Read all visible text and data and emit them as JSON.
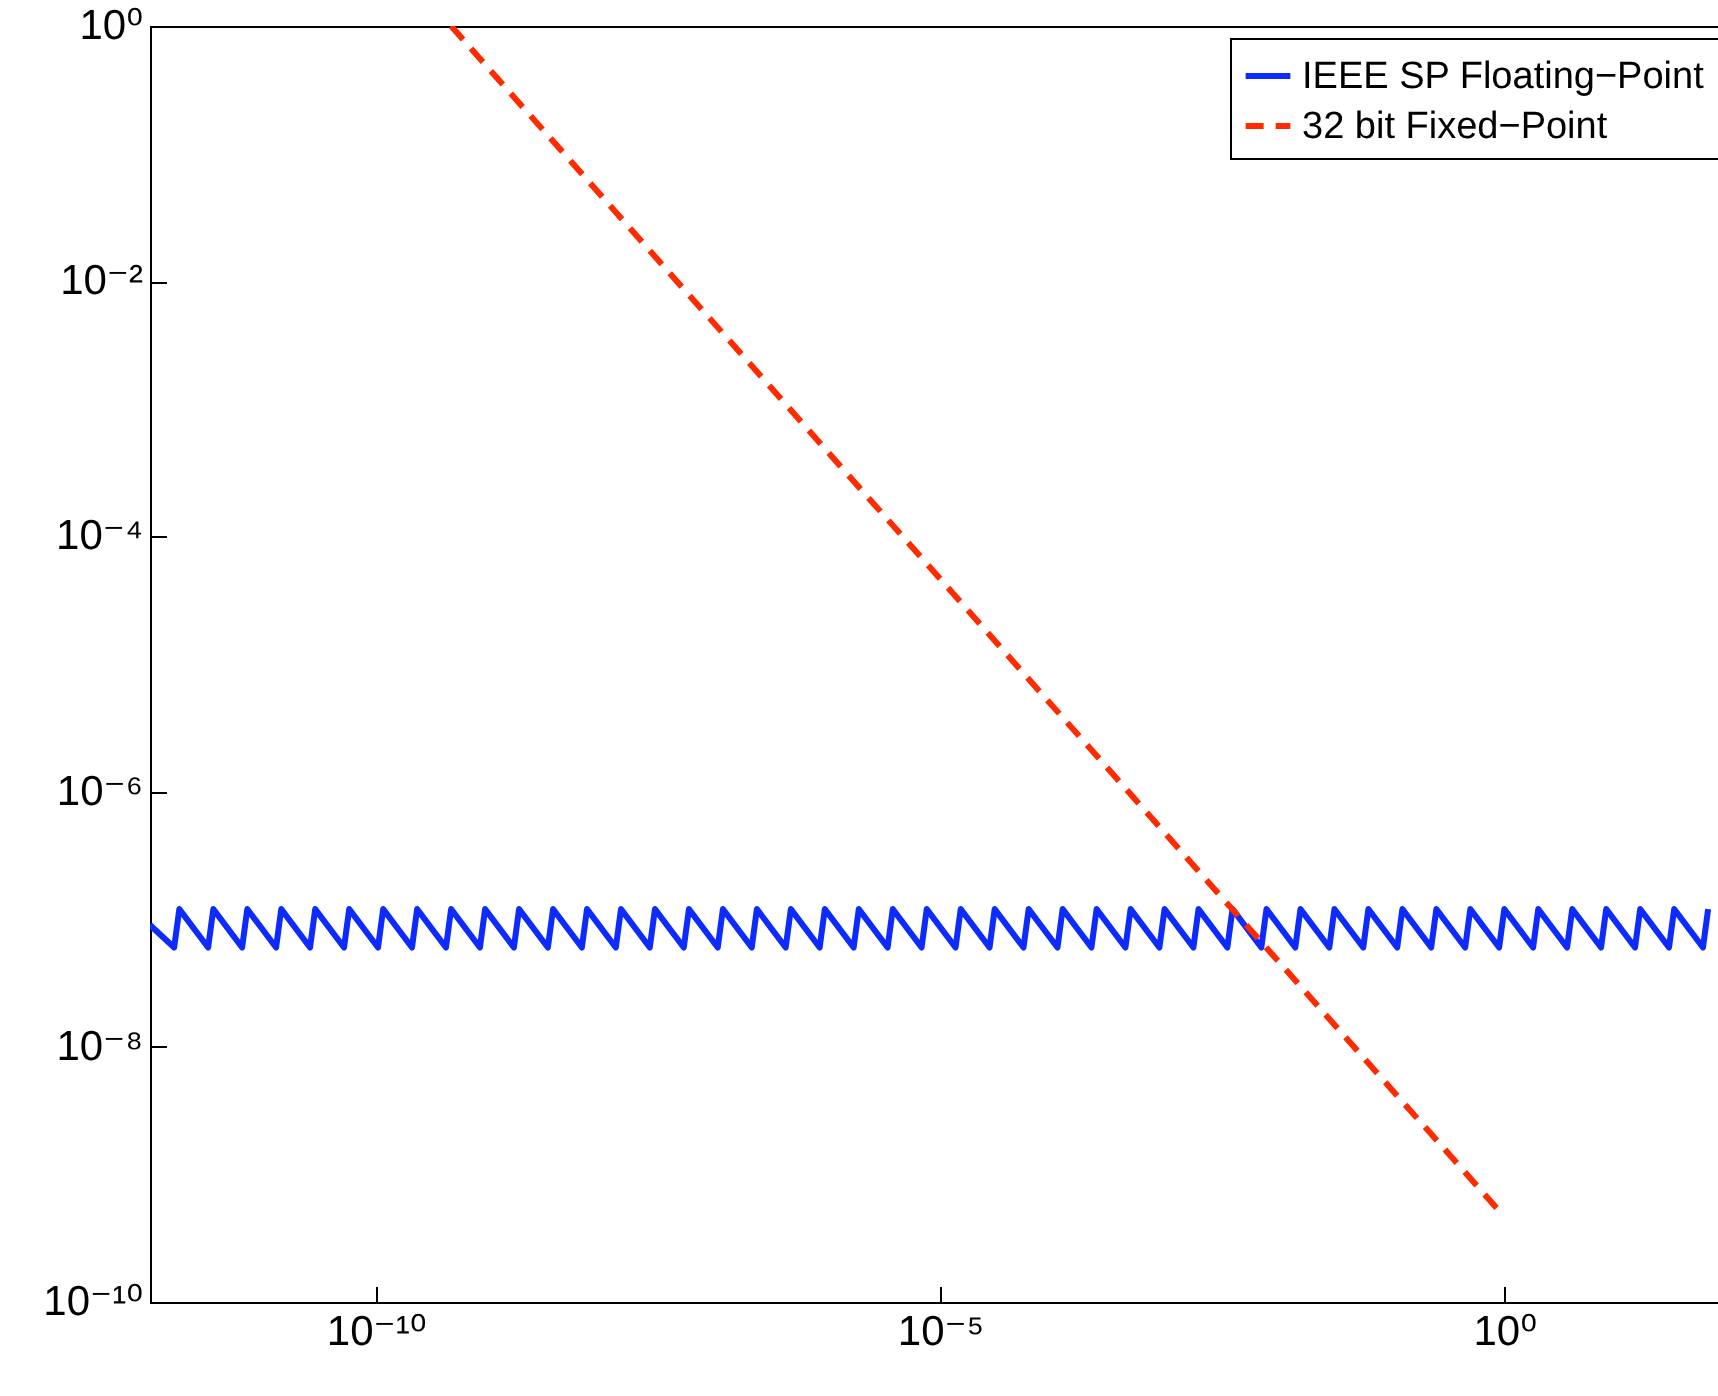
{
  "chart_data": {
    "type": "line",
    "log": "xy",
    "grid": false,
    "legend": "top right",
    "marker": "none",
    "xlim": [
      1e-12,
      100
    ],
    "ylim": [
      1e-10,
      1
    ],
    "xticks": [
      {
        "value": 1e-10,
        "label": "10⁻¹⁰"
      },
      {
        "value": 1e-05,
        "label": "10⁻⁵"
      },
      {
        "value": 1,
        "label": "10⁰"
      }
    ],
    "yticks": [
      {
        "value": 1e-10,
        "label": "10⁻¹⁰"
      },
      {
        "value": 1e-08,
        "label": "10⁻⁸"
      },
      {
        "value": 1e-06,
        "label": "10⁻⁶"
      },
      {
        "value": 0.0001,
        "label": "10⁻⁴"
      },
      {
        "value": 0.01,
        "label": "10⁻²"
      },
      {
        "value": 1,
        "label": "10⁰"
      }
    ],
    "series": [
      {
        "name": "IEEE SP Floating−Point",
        "color": "#0d2bff",
        "line_style": "solid",
        "x": [
          1e-12,
          1.637e-12,
          1.819e-12,
          3.274e-12,
          3.638e-12,
          6.548e-12,
          7.276e-12,
          1.31e-11,
          1.455e-11,
          2.619e-11,
          2.91e-11,
          5.238e-11,
          5.821e-11,
          1.048e-10,
          1.164e-10,
          2.095e-10,
          2.328e-10,
          4.191e-10,
          4.657e-10,
          8.382e-10,
          9.313e-10,
          1.676e-09,
          1.863e-09,
          3.353e-09,
          3.725e-09,
          6.706e-09,
          7.451e-09,
          1.341e-08,
          1.49e-08,
          2.682e-08,
          2.98e-08,
          5.364e-08,
          5.96e-08,
          1.073e-07,
          1.192e-07,
          2.146e-07,
          2.384e-07,
          4.291e-07,
          4.768e-07,
          8.583e-07,
          9.537e-07,
          1.717e-06,
          1.907e-06,
          3.433e-06,
          3.815e-06,
          6.866e-06,
          7.629e-06,
          1.373e-05,
          1.526e-05,
          2.747e-05,
          3.052e-05,
          5.493e-05,
          6.104e-05,
          0.0001099,
          0.0001221,
          0.0002197,
          0.0002441,
          0.0004395,
          0.0004883,
          0.0008789,
          0.0009766,
          0.001758,
          0.001953,
          0.003516,
          0.003906,
          0.007031,
          0.007813,
          0.01406,
          0.01563,
          0.02813,
          0.03125,
          0.05625,
          0.0625,
          0.1125,
          0.125,
          0.225,
          0.25,
          0.45,
          0.5,
          0.9,
          1,
          1.8,
          2,
          3.6,
          4,
          7.2,
          8,
          14.4,
          16,
          28.8,
          32,
          57.6,
          64
        ],
        "values": [
          9e-08,
          6e-08,
          1.2e-07,
          6e-08,
          1.2e-07,
          6e-08,
          1.2e-07,
          6e-08,
          1.2e-07,
          6e-08,
          1.2e-07,
          6e-08,
          1.2e-07,
          6e-08,
          1.2e-07,
          6e-08,
          1.2e-07,
          6e-08,
          1.2e-07,
          6e-08,
          1.2e-07,
          6e-08,
          1.2e-07,
          6e-08,
          1.2e-07,
          6e-08,
          1.2e-07,
          6e-08,
          1.2e-07,
          6e-08,
          1.2e-07,
          6e-08,
          1.2e-07,
          6e-08,
          1.2e-07,
          6e-08,
          1.2e-07,
          6e-08,
          1.2e-07,
          6e-08,
          1.2e-07,
          6e-08,
          1.2e-07,
          6e-08,
          1.2e-07,
          6e-08,
          1.2e-07,
          6e-08,
          1.2e-07,
          6e-08,
          1.2e-07,
          6e-08,
          1.2e-07,
          6e-08,
          1.2e-07,
          6e-08,
          1.2e-07,
          6e-08,
          1.2e-07,
          6e-08,
          1.2e-07,
          6e-08,
          1.2e-07,
          6e-08,
          1.2e-07,
          6e-08,
          1.2e-07,
          6e-08,
          1.2e-07,
          6e-08,
          1.2e-07,
          6e-08,
          1.2e-07,
          6e-08,
          1.2e-07,
          6e-08,
          1.2e-07,
          6e-08,
          1.2e-07,
          6e-08,
          1.2e-07,
          6e-08,
          1.2e-07,
          6e-08,
          1.2e-07,
          6e-08,
          1.2e-07,
          6e-08,
          1.2e-07,
          6e-08,
          1.2e-07,
          6e-08,
          1.2e-07
        ]
      },
      {
        "name": "32 bit Fixed−Point",
        "color": "#ff2a00",
        "line_style": "dashed",
        "x": [
          4.657e-10,
          1
        ],
        "values": [
          1,
          4.657e-10
        ]
      }
    ]
  }
}
